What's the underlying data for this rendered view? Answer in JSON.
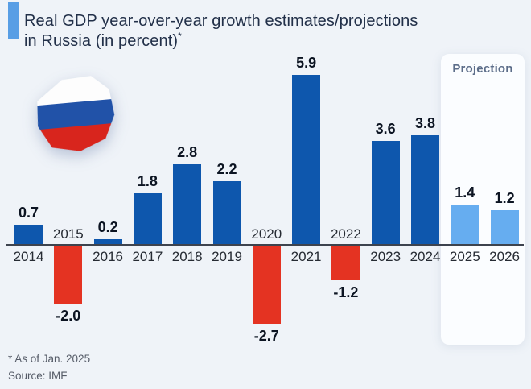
{
  "title": {
    "lines": [
      "Real GDP year-over-year growth estimates/projections",
      "in Russia (in percent)"
    ],
    "footnote_marker": "*"
  },
  "projection_label": "Projection",
  "footnotes": {
    "asterisk": "* As of Jan. 2025",
    "source": "Source: IMF"
  },
  "flag": {
    "country": "Russia",
    "stripes": [
      "#fdfdfd",
      "#2152a8",
      "#d8251d"
    ]
  },
  "colors": {
    "positive_bar": "#0e57ad",
    "negative_bar": "#e43322",
    "projection_bar": "#66adf0",
    "accent": "#589ee5",
    "page_background": "#eff3f8",
    "projection_box": "#fbfdff"
  },
  "chart_data": {
    "type": "bar",
    "title": "Real GDP year-over-year growth estimates/projections in Russia (in percent)*",
    "categories": [
      "2014",
      "2015",
      "2016",
      "2017",
      "2018",
      "2019",
      "2020",
      "2021",
      "2022",
      "2023",
      "2024",
      "2025",
      "2026"
    ],
    "values": [
      0.7,
      -2.0,
      0.2,
      1.8,
      2.8,
      2.2,
      -2.7,
      5.9,
      -1.2,
      3.6,
      3.8,
      1.4,
      1.2
    ],
    "value_labels": [
      "0.7",
      "-2.0",
      "0.2",
      "1.8",
      "2.8",
      "2.2",
      "-2.7",
      "5.9",
      "-1.2",
      "3.6",
      "3.8",
      "1.4",
      "1.2"
    ],
    "projection_from": "2025",
    "ylim": [
      -3.2,
      6.5
    ],
    "grid": false,
    "legend": "none",
    "source": "IMF"
  }
}
